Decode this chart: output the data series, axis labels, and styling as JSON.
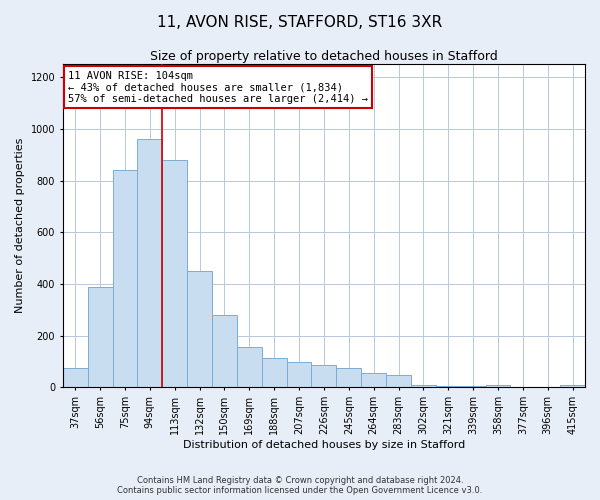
{
  "title": "11, AVON RISE, STAFFORD, ST16 3XR",
  "subtitle": "Size of property relative to detached houses in Stafford",
  "xlabel": "Distribution of detached houses by size in Stafford",
  "ylabel": "Number of detached properties",
  "categories": [
    "37sqm",
    "56sqm",
    "75sqm",
    "94sqm",
    "113sqm",
    "132sqm",
    "150sqm",
    "169sqm",
    "188sqm",
    "207sqm",
    "226sqm",
    "245sqm",
    "264sqm",
    "283sqm",
    "302sqm",
    "321sqm",
    "339sqm",
    "358sqm",
    "377sqm",
    "396sqm",
    "415sqm"
  ],
  "values": [
    75,
    390,
    840,
    960,
    880,
    450,
    280,
    155,
    115,
    100,
    85,
    75,
    55,
    50,
    10,
    5,
    5,
    10,
    3,
    3,
    8
  ],
  "bar_color": "#c9ddf0",
  "bar_edge_color": "#7aadd4",
  "vline_position": 3.5,
  "annotation_text": "11 AVON RISE: 104sqm\n← 43% of detached houses are smaller (1,834)\n57% of semi-detached houses are larger (2,414) →",
  "annotation_box_color": "white",
  "annotation_box_edge_color": "#cc0000",
  "vline_color": "#cc0000",
  "ylim": [
    0,
    1250
  ],
  "yticks": [
    0,
    200,
    400,
    600,
    800,
    1000,
    1200
  ],
  "footer": "Contains HM Land Registry data © Crown copyright and database right 2024.\nContains public sector information licensed under the Open Government Licence v3.0.",
  "background_color": "#e8eef8",
  "plot_background": "#ffffff",
  "grid_color": "#b8c8dc",
  "title_fontsize": 11,
  "subtitle_fontsize": 9,
  "ylabel_fontsize": 8,
  "xlabel_fontsize": 8,
  "tick_fontsize": 7,
  "footer_fontsize": 6,
  "annotation_fontsize": 7.5
}
